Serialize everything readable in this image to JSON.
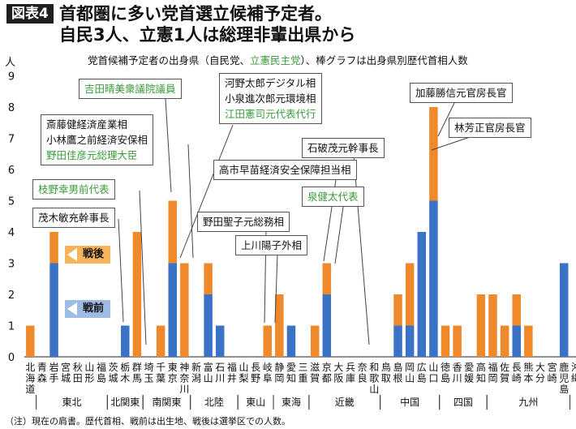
{
  "header": {
    "fig_tag": "図表4",
    "title_line1": "首都圏に多い党首選立候補予定者。",
    "title_line2": "自民3人、立憲1人は総理非輩出県から"
  },
  "y_unit": "人",
  "subtitle": {
    "part1": "党首候補予定者の出身県（自民党、",
    "part_green": "立憲民主党",
    "part2": "）、棒グラフは出身県別歴代首相人数"
  },
  "legend": {
    "postwar": "戦後",
    "prewar": "戦前"
  },
  "note": "（注）現在の肩書。歴代首相、戦前は出生地、戦後は選挙区での人数。",
  "colors": {
    "prewar": "#3a72c6",
    "postwar": "#ef8a2c",
    "green_text": "#3a9a3a",
    "axis": "#222222"
  },
  "callouts": [
    {
      "id": "yoshida",
      "lines": [
        {
          "text": "吉田晴美衆議院議員",
          "green": true
        }
      ]
    },
    {
      "id": "saito",
      "lines": [
        {
          "text": "斎藤健経済産業相",
          "green": false
        },
        {
          "text": "小林鷹之前経済安保相",
          "green": false
        },
        {
          "text": "野田佳彦元総理大臣",
          "green": true
        }
      ]
    },
    {
      "id": "edano",
      "lines": [
        {
          "text": "枝野幸男前代表",
          "green": true
        }
      ]
    },
    {
      "id": "motegi",
      "lines": [
        {
          "text": "茂木敏充幹事長",
          "green": false
        }
      ]
    },
    {
      "id": "kono",
      "lines": [
        {
          "text": "河野太郎デジタル相",
          "green": false
        },
        {
          "text": "小泉進次郎元環境相",
          "green": false
        },
        {
          "text": "江田憲司元代表代行",
          "green": true
        }
      ]
    },
    {
      "id": "kato",
      "lines": [
        {
          "text": "加藤勝信元官房長官",
          "green": false
        }
      ]
    },
    {
      "id": "hayashi",
      "lines": [
        {
          "text": "林芳正官房長官",
          "green": false
        }
      ]
    },
    {
      "id": "ishiba",
      "lines": [
        {
          "text": "石破茂元幹事長",
          "green": false
        }
      ]
    },
    {
      "id": "takaichi",
      "lines": [
        {
          "text": "高市早苗経済安全保障担当相",
          "green": false
        }
      ]
    },
    {
      "id": "izumi",
      "lines": [
        {
          "text": "泉健太代表",
          "green": true
        }
      ]
    },
    {
      "id": "noda_seiko",
      "lines": [
        {
          "text": "野田聖子元総務相",
          "green": false
        }
      ]
    },
    {
      "id": "kamikawa",
      "lines": [
        {
          "text": "上川陽子外相",
          "green": false
        }
      ]
    }
  ],
  "chart_data": {
    "type": "bar",
    "stacked": true,
    "ylabel": "人",
    "ylim": [
      0,
      9
    ],
    "yticks": [
      0,
      1,
      2,
      3,
      4,
      5,
      6,
      7,
      8,
      9
    ],
    "categories": [
      "北海道",
      "青森",
      "岩手",
      "宮城",
      "秋田",
      "山形",
      "福島",
      "茨城",
      "栃木",
      "群馬",
      "埼玉",
      "千葉",
      "東京",
      "神奈川",
      "新潟",
      "富山",
      "石川",
      "福井",
      "山梨",
      "長野",
      "岐阜",
      "静岡",
      "愛知",
      "三重",
      "滋賀",
      "京都",
      "大阪",
      "兵庫",
      "奈良",
      "和歌山",
      "鳥取",
      "島根",
      "岡山",
      "広島",
      "山口",
      "徳島",
      "香川",
      "愛媛",
      "高知",
      "福岡",
      "佐賀",
      "長崎",
      "熊本",
      "大分",
      "宮崎",
      "鹿児島",
      "沖縄"
    ],
    "category_labels": [
      "北海道",
      "青森",
      "岩手",
      "宮城",
      "秋田",
      "山形",
      "福島",
      "茨城",
      "栃木",
      "群馬",
      "埼玉",
      "千葉",
      "東京",
      "神奈川",
      "新潟",
      "富山",
      "石川",
      "福井",
      "山梨",
      "長野",
      "岐阜",
      "静岡",
      "愛知",
      "三重",
      "滋賀",
      "京都",
      "大阪",
      "兵庫",
      "奈良",
      "和歌山",
      "鳥取",
      "島根",
      "岡山",
      "広島",
      "山口",
      "徳島",
      "香川",
      "愛媛",
      "高知",
      "福岡",
      "佐賀",
      "長崎",
      "熊本",
      "大分",
      "宮崎",
      "鹿児島",
      "沖縄"
    ],
    "series": [
      {
        "name": "戦前",
        "values": [
          0,
          0,
          3,
          0,
          0,
          0,
          0,
          0,
          1,
          0,
          0,
          0,
          3,
          0,
          0,
          2,
          1,
          0,
          0,
          0,
          0,
          0,
          1,
          0,
          0,
          2,
          0,
          0,
          0,
          0,
          0,
          1,
          1,
          4,
          5,
          0,
          0,
          0,
          0,
          0,
          0,
          1,
          0,
          0,
          0,
          3,
          0
        ]
      },
      {
        "name": "戦後",
        "values": [
          1,
          0,
          1,
          0,
          0,
          0,
          0,
          0,
          0,
          4,
          0,
          1,
          2,
          3,
          0,
          1,
          0,
          0,
          0,
          0,
          1,
          2,
          0,
          0,
          1,
          1,
          0,
          0,
          0,
          0,
          0,
          1,
          2,
          0,
          3,
          1,
          1,
          0,
          2,
          2,
          1,
          1,
          1,
          0,
          0,
          0,
          0
        ]
      }
    ],
    "regions": [
      {
        "name": "東北",
        "start": 1,
        "end": 6
      },
      {
        "name": "北関東",
        "start": 7,
        "end": 9
      },
      {
        "name": "南関東",
        "start": 10,
        "end": 13
      },
      {
        "name": "北陸",
        "start": 14,
        "end": 17
      },
      {
        "name": "東山",
        "start": 18,
        "end": 20
      },
      {
        "name": "東海",
        "start": 21,
        "end": 23
      },
      {
        "name": "近畿",
        "start": 24,
        "end": 29
      },
      {
        "name": "中国",
        "start": 30,
        "end": 34
      },
      {
        "name": "四国",
        "start": 35,
        "end": 38
      },
      {
        "name": "九州",
        "start": 39,
        "end": 45
      }
    ]
  }
}
